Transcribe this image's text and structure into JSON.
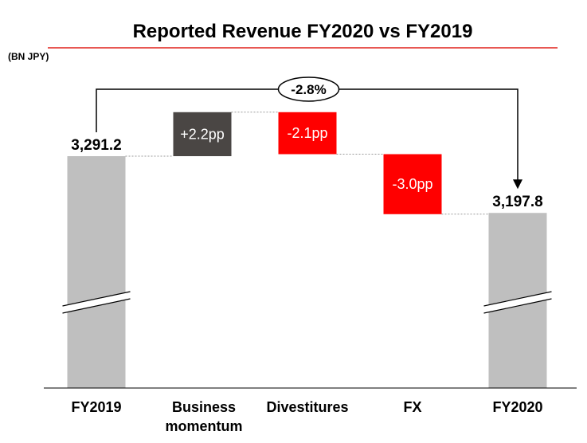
{
  "title": "Reported Revenue FY2020 vs FY2019",
  "unit_label": "(BN JPY)",
  "total_change_label": "-2.8%",
  "colors": {
    "total_bar": "#bfbfbf",
    "increase_bar": "#4a4644",
    "decrease_bar": "#ff0000",
    "title_rule": "#e0201a",
    "connector": "#9a9a9a"
  },
  "chart_data": {
    "type": "waterfall",
    "title": "Reported Revenue FY2020 vs FY2019",
    "ylabel": "(BN JPY)",
    "axis_break": true,
    "steps": [
      {
        "category": "FY2019",
        "kind": "total",
        "value": 3291.2,
        "label": "3,291.2"
      },
      {
        "category": "Business momentum",
        "category_lines": [
          "Business",
          "momentum"
        ],
        "kind": "increase",
        "change_pp": 2.2,
        "label": "+2.2pp"
      },
      {
        "category": "Divestitures",
        "category_lines": [
          "Divestitures"
        ],
        "kind": "decrease",
        "change_pp": -2.1,
        "label": "-2.1pp"
      },
      {
        "category": "FX",
        "category_lines": [
          "FX"
        ],
        "kind": "decrease",
        "change_pp": -3.0,
        "label": "-3.0pp"
      },
      {
        "category": "FY2020",
        "kind": "total",
        "value": 3197.8,
        "label": "3,197.8"
      }
    ],
    "total_change": {
      "from": "FY2019",
      "to": "FY2020",
      "label": "-2.8%"
    }
  }
}
